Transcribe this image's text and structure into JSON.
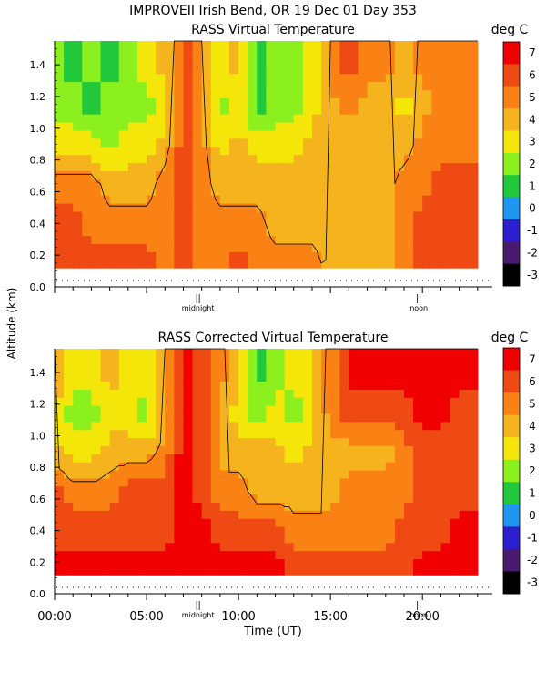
{
  "header": {
    "line1": "IMPROVEII  Irish Bend, OR  19 Dec 01 Day 353"
  },
  "shared": {
    "ylabel": "Altitude (km)",
    "xlabel": "Time (UT)",
    "units": "deg C"
  },
  "colors": {
    "scale": [
      "#000000",
      "#4a1a6e",
      "#2b1fd0",
      "#1f96f0",
      "#22c83c",
      "#8cf01e",
      "#f5e60a",
      "#f5b41e",
      "#fa8214",
      "#f04a14",
      "#f00000"
    ]
  },
  "chart_data": [
    {
      "type": "heatmap",
      "title": "RASS Virtual Temperature",
      "ylabel": "Altitude (km)",
      "units": "deg C",
      "yticks": [
        "0.0",
        "0.2",
        "0.4",
        "0.6",
        "0.8",
        "1.0",
        "1.2",
        "1.4"
      ],
      "ylim": [
        0,
        1.55
      ],
      "xlim": [
        0,
        23.8
      ],
      "x_markers": [
        {
          "x": 7.8,
          "label": "midnight"
        },
        {
          "x": 19.8,
          "label": "noon"
        }
      ],
      "colorbar": {
        "labels": [
          "7",
          "6",
          "5",
          "4",
          "3",
          "2",
          "1",
          "0",
          "-1",
          "-2",
          "-3"
        ]
      },
      "data_ymin": 0.12,
      "data_xmax": 23.0,
      "times": [
        0,
        1,
        2,
        3,
        4,
        5,
        6,
        7,
        8,
        9,
        10,
        11,
        12,
        13,
        14,
        15,
        16,
        17,
        18,
        19,
        20,
        21,
        22,
        23
      ],
      "altitudes": [
        0.15,
        0.4,
        0.65,
        0.9,
        1.15,
        1.4
      ],
      "values": [
        [
          6,
          6,
          6,
          6,
          6,
          6,
          5,
          6,
          5,
          5,
          6,
          5,
          5,
          5,
          5,
          4,
          4,
          4,
          4,
          5,
          6,
          6,
          6,
          6
        ],
        [
          6,
          6,
          5,
          5,
          5,
          5,
          5,
          6,
          5,
          5,
          5,
          5,
          4,
          4,
          4,
          4,
          4,
          4,
          4,
          5,
          6,
          6,
          6,
          6
        ],
        [
          5,
          5,
          5,
          4,
          4,
          4,
          5,
          6,
          5,
          4,
          4,
          4,
          4,
          4,
          4,
          4,
          4,
          4,
          4,
          5,
          5,
          6,
          6,
          6
        ],
        [
          3,
          3,
          3,
          2,
          3,
          3,
          4,
          6,
          5,
          3,
          4,
          3,
          3,
          3,
          4,
          4,
          4,
          4,
          4,
          4,
          5,
          5,
          5,
          5
        ],
        [
          2,
          2,
          1,
          2,
          2,
          2,
          3,
          6,
          5,
          2,
          3,
          1,
          2,
          2,
          3,
          4,
          5,
          4,
          4,
          3,
          4,
          5,
          5,
          5
        ],
        [
          2,
          1,
          2,
          1,
          2,
          3,
          4,
          6,
          5,
          3,
          4,
          1,
          2,
          2,
          3,
          5,
          6,
          5,
          5,
          4,
          5,
          5,
          5,
          5
        ]
      ]
    },
    {
      "type": "heatmap",
      "title": "RASS Corrected Virtual Temperature",
      "ylabel": "Altitude (km)",
      "xlabel": "Time (UT)",
      "units": "deg C",
      "yticks": [
        "0.0",
        "0.2",
        "0.4",
        "0.6",
        "0.8",
        "1.0",
        "1.2",
        "1.4"
      ],
      "xtick_labels": [
        "00:00",
        "05:00",
        "10:00",
        "15:00",
        "20:00"
      ],
      "ylim": [
        0,
        1.55
      ],
      "xlim": [
        0,
        23.8
      ],
      "x_markers": [
        {
          "x": 7.8,
          "label": "midnight"
        },
        {
          "x": 19.8,
          "label": "noon"
        }
      ],
      "colorbar": {
        "labels": [
          "7",
          "6",
          "5",
          "4",
          "3",
          "2",
          "1",
          "0",
          "-1",
          "-2",
          "-3"
        ]
      },
      "data_ymin": 0.12,
      "data_xmax": 23.0,
      "times": [
        0,
        1,
        2,
        3,
        4,
        5,
        6,
        7,
        8,
        9,
        10,
        11,
        12,
        13,
        14,
        15,
        16,
        17,
        18,
        19,
        20,
        21,
        22,
        23
      ],
      "altitudes": [
        0.15,
        0.4,
        0.65,
        0.9,
        1.15,
        1.4
      ],
      "values": [
        [
          7,
          7,
          7,
          7,
          7,
          7,
          7,
          7,
          7,
          7,
          7,
          7,
          7,
          6,
          6,
          6,
          6,
          6,
          6,
          6,
          7,
          7,
          7,
          7
        ],
        [
          6,
          6,
          6,
          6,
          6,
          6,
          6,
          7,
          7,
          6,
          6,
          6,
          6,
          5,
          5,
          5,
          5,
          5,
          5,
          6,
          6,
          6,
          7,
          7
        ],
        [
          6,
          5,
          5,
          5,
          6,
          6,
          6,
          7,
          6,
          5,
          5,
          4,
          4,
          4,
          4,
          4,
          5,
          5,
          5,
          5,
          6,
          6,
          6,
          6
        ],
        [
          4,
          3,
          3,
          4,
          4,
          4,
          5,
          7,
          6,
          4,
          4,
          4,
          4,
          3,
          4,
          4,
          4,
          4,
          4,
          5,
          6,
          6,
          6,
          6
        ],
        [
          3,
          2,
          2,
          3,
          3,
          2,
          4,
          7,
          6,
          4,
          3,
          2,
          3,
          2,
          3,
          5,
          6,
          6,
          6,
          6,
          7,
          7,
          6,
          6
        ],
        [
          5,
          3,
          3,
          4,
          3,
          3,
          5,
          7,
          6,
          5,
          4,
          1,
          2,
          3,
          3,
          5,
          7,
          7,
          7,
          7,
          7,
          7,
          7,
          7
        ]
      ]
    }
  ]
}
